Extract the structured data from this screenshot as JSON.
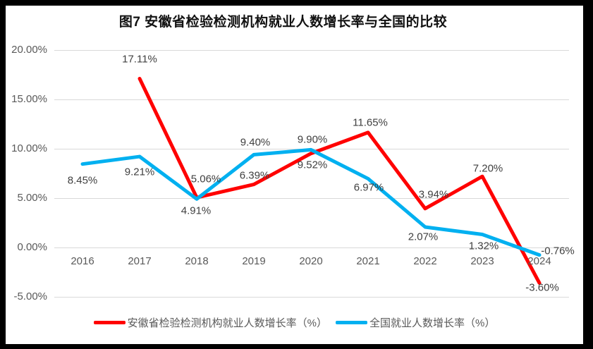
{
  "chart_data": {
    "type": "line",
    "title": "图7 安徽省检验检测机构就业人数增长率与全国的比较",
    "categories": [
      "2016",
      "2017",
      "2018",
      "2019",
      "2020",
      "2021",
      "2022",
      "2023",
      "2024"
    ],
    "series": [
      {
        "name": "安徽省检验检测机构就业人数增长率（%）",
        "color": "#FF0000",
        "values": [
          null,
          17.11,
          5.06,
          6.39,
          9.52,
          11.65,
          3.94,
          7.2,
          -3.6
        ],
        "label_offsets": [
          [
            0,
            0
          ],
          [
            0,
            -27
          ],
          [
            13,
            -26
          ],
          [
            1,
            -13
          ],
          [
            2,
            16
          ],
          [
            3,
            -14
          ],
          [
            12,
            -20
          ],
          [
            8,
            -11
          ],
          [
            4,
            7
          ]
        ]
      },
      {
        "name": "全国就业人数增长率（%）",
        "color": "#00B0F0",
        "values": [
          8.45,
          9.21,
          4.91,
          9.4,
          9.9,
          6.97,
          2.07,
          1.32,
          -0.76
        ],
        "label_offsets": [
          [
            0,
            23
          ],
          [
            0,
            22
          ],
          [
            -1,
            17
          ],
          [
            2,
            -17
          ],
          [
            2,
            -14
          ],
          [
            1,
            13
          ],
          [
            -3,
            14
          ],
          [
            2,
            16
          ],
          [
            26,
            -6
          ]
        ]
      }
    ],
    "y_axis": {
      "ticks": [
        {
          "value": 20,
          "label": "20.00%"
        },
        {
          "value": 15,
          "label": "15.00%"
        },
        {
          "value": 10,
          "label": "10.00%"
        },
        {
          "value": 5,
          "label": "5.00%"
        },
        {
          "value": 0,
          "label": "0.00%"
        },
        {
          "value": -5,
          "label": "-5.00%"
        }
      ],
      "min": -5,
      "max": 20
    },
    "grid": true,
    "gridline_color": "#D9D9D9",
    "legend_position": "bottom",
    "label_suffix": "%"
  }
}
